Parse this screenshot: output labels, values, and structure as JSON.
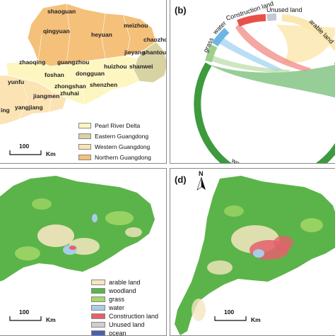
{
  "panel_a": {
    "cities": [
      "shaoguan",
      "qingyuan",
      "heyuan",
      "meizhou",
      "chaozhou",
      "jieyang",
      "shantou",
      "zhaoqing",
      "guangzhou",
      "huizhou",
      "shanwei",
      "foshan",
      "dongguan",
      "yunfu",
      "zhongshan",
      "shenzhen",
      "jiangmen",
      "zhuhai",
      "yangjiang",
      "ing"
    ],
    "legend": [
      {
        "label": "Pearl River Delta",
        "color": "#fdf6c0"
      },
      {
        "label": "Eastern Guangdong",
        "color": "#d8d3a3"
      },
      {
        "label": "Western Guangdong",
        "color": "#fbe3b3"
      },
      {
        "label": "Northern Guangdong",
        "color": "#f4c07a"
      }
    ],
    "scale_value": "100",
    "scale_unit": "Km"
  },
  "panel_b": {
    "label": "(b)",
    "arcs": [
      "arable land",
      "woodland",
      "grass",
      "water",
      "Construction land",
      "Unused land"
    ],
    "colors": {
      "arable": "#fbe8b0",
      "woodland": "#3d9a3d",
      "grass": "#9ccf8b",
      "water": "#6cb6e6",
      "construction": "#e8514a",
      "unused": "#c7c7d6"
    }
  },
  "panel_c": {
    "legend": [
      {
        "label": "arable land",
        "color": "#f5e6c0"
      },
      {
        "label": "woodland",
        "color": "#5bb449"
      },
      {
        "label": "grass",
        "color": "#a6d96a"
      },
      {
        "label": "water",
        "color": "#a9cde8"
      },
      {
        "label": "Construction land",
        "color": "#e5606c"
      },
      {
        "label": "Unused land",
        "color": "#cfcfcf"
      },
      {
        "label": "ocean",
        "color": "#4a5fb0"
      }
    ],
    "scale_value": "100",
    "scale_unit": "Km"
  },
  "panel_d": {
    "label": "(d)",
    "north": "N",
    "scale_value": "100",
    "scale_unit": "Km"
  }
}
